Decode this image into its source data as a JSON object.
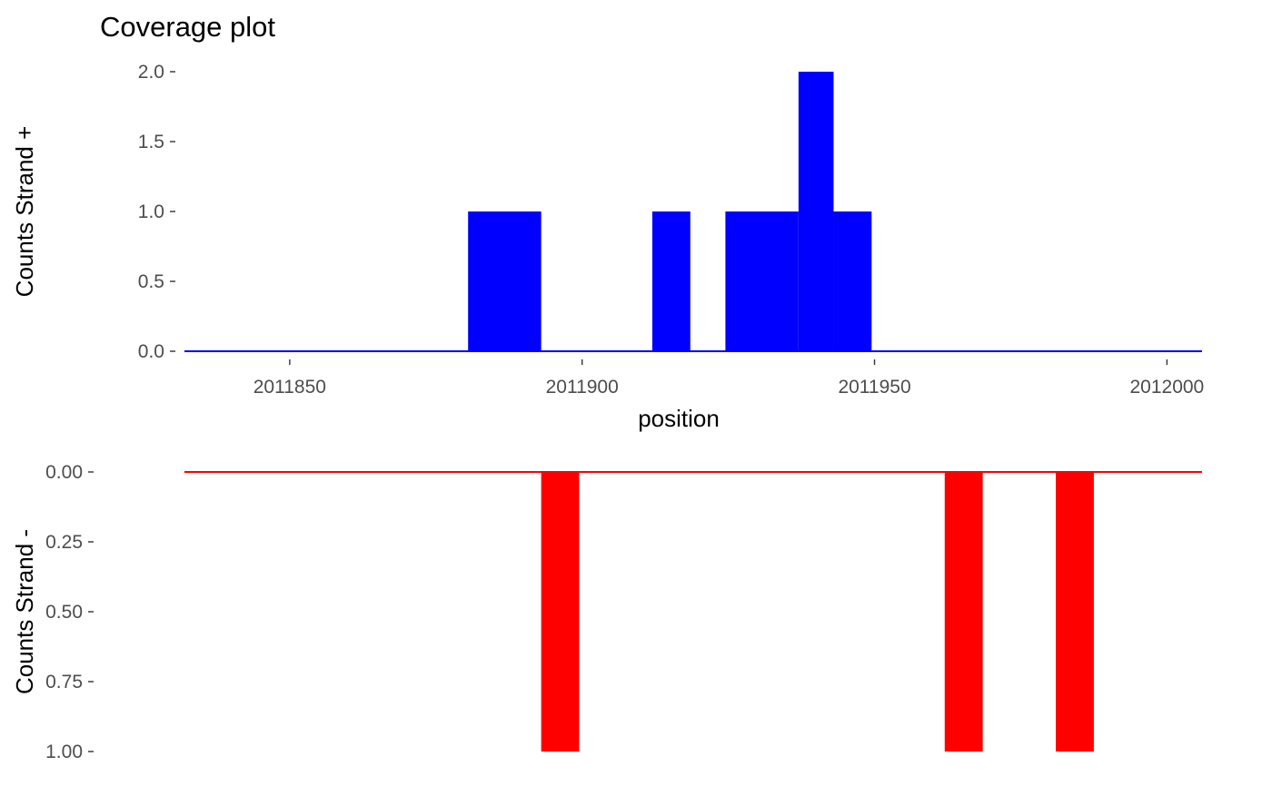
{
  "chart_data": [
    {
      "type": "area",
      "title": "Coverage plot",
      "xlabel": "position",
      "ylabel": "Counts Strand +",
      "color": "#0000ff",
      "xlim": [
        2011832,
        2012006
      ],
      "ylim": [
        0,
        2
      ],
      "x_ticks": [
        2011850,
        2011900,
        2011950,
        2012000
      ],
      "x_tick_labels": [
        "2011850",
        "2011900",
        "2011950",
        "2012000"
      ],
      "y_ticks": [
        0,
        0.5,
        1,
        1.5,
        2
      ],
      "y_tick_labels": [
        "0.0",
        "0.5",
        "1.0",
        "1.5",
        "2.0"
      ],
      "grid": false,
      "baseline_x_range": [
        2011832,
        2012006
      ],
      "bars": [
        {
          "x_start": 2011880.5,
          "x_end": 2011893,
          "value": 1
        },
        {
          "x_start": 2011912,
          "x_end": 2011918.5,
          "value": 1
        },
        {
          "x_start": 2011924.5,
          "x_end": 2011937,
          "value": 1
        },
        {
          "x_start": 2011937,
          "x_end": 2011943,
          "value": 2
        },
        {
          "x_start": 2011943,
          "x_end": 2011949.5,
          "value": 1
        }
      ]
    },
    {
      "type": "bar",
      "xlabel": "",
      "ylabel": "Counts Strand -",
      "color": "#ff0000",
      "xlim": [
        2011832,
        2012006
      ],
      "ylim": [
        0,
        1
      ],
      "y_reversed": true,
      "y_ticks": [
        0,
        0.25,
        0.5,
        0.75,
        1
      ],
      "y_tick_labels": [
        "0.00",
        "0.25",
        "0.50",
        "0.75",
        "1.00"
      ],
      "grid": false,
      "baseline_x_range": [
        2011832,
        2012006
      ],
      "bars": [
        {
          "x_start": 2011893,
          "x_end": 2011899.5,
          "value": 1
        },
        {
          "x_start": 2011962,
          "x_end": 2011968.5,
          "value": 1
        },
        {
          "x_start": 2011981,
          "x_end": 2011987.5,
          "value": 1
        }
      ]
    }
  ]
}
